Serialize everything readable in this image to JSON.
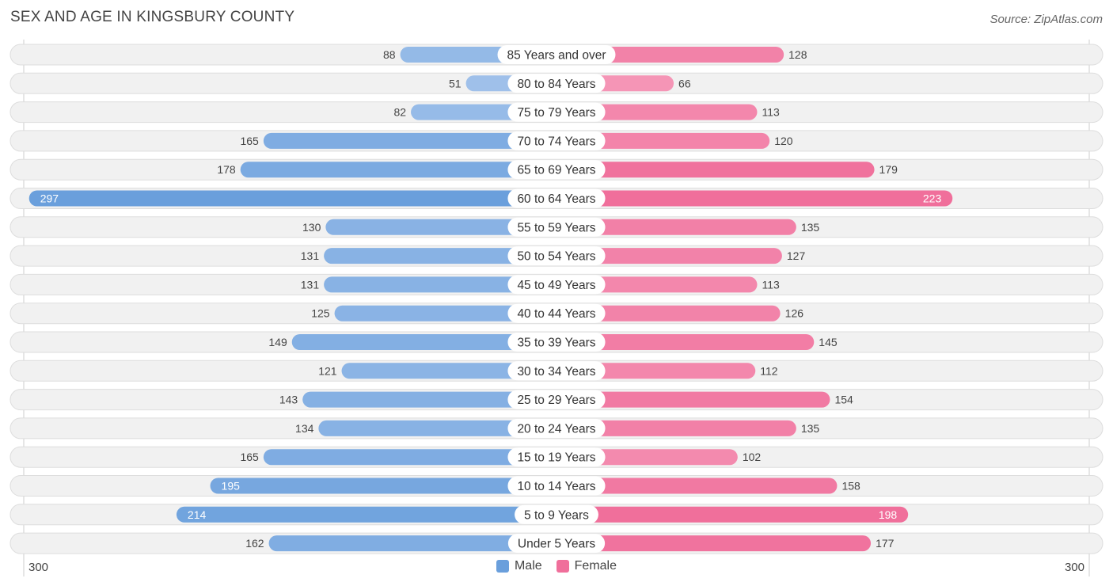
{
  "header": {
    "title": "SEX AND AGE IN KINGSBURY COUNTY",
    "source": "Source: ZipAtlas.com"
  },
  "axis": {
    "left_label": "300",
    "right_label": "300"
  },
  "legend": {
    "male_label": "Male",
    "female_label": "Female"
  },
  "colors": {
    "male": "#6a9fdc",
    "male_light": "#adc9ee",
    "female": "#f06f9b",
    "female_light": "#f7a9c4",
    "row_bg": "#f1f1f1",
    "row_border": "#dddddd"
  },
  "chart_data": {
    "type": "bar",
    "title": "SEX AND AGE IN KINGSBURY COUNTY",
    "xlim": [
      -300,
      300
    ],
    "legend_position": "bottom-center",
    "categories": [
      "85 Years and over",
      "80 to 84 Years",
      "75 to 79 Years",
      "70 to 74 Years",
      "65 to 69 Years",
      "60 to 64 Years",
      "55 to 59 Years",
      "50 to 54 Years",
      "45 to 49 Years",
      "40 to 44 Years",
      "35 to 39 Years",
      "30 to 34 Years",
      "25 to 29 Years",
      "20 to 24 Years",
      "15 to 19 Years",
      "10 to 14 Years",
      "5 to 9 Years",
      "Under 5 Years"
    ],
    "series": [
      {
        "name": "Male",
        "values": [
          88,
          51,
          82,
          165,
          178,
          297,
          130,
          131,
          131,
          125,
          149,
          121,
          143,
          134,
          165,
          195,
          214,
          162
        ]
      },
      {
        "name": "Female",
        "values": [
          128,
          66,
          113,
          120,
          179,
          223,
          135,
          127,
          113,
          126,
          145,
          112,
          154,
          135,
          102,
          158,
          198,
          177
        ]
      }
    ]
  }
}
